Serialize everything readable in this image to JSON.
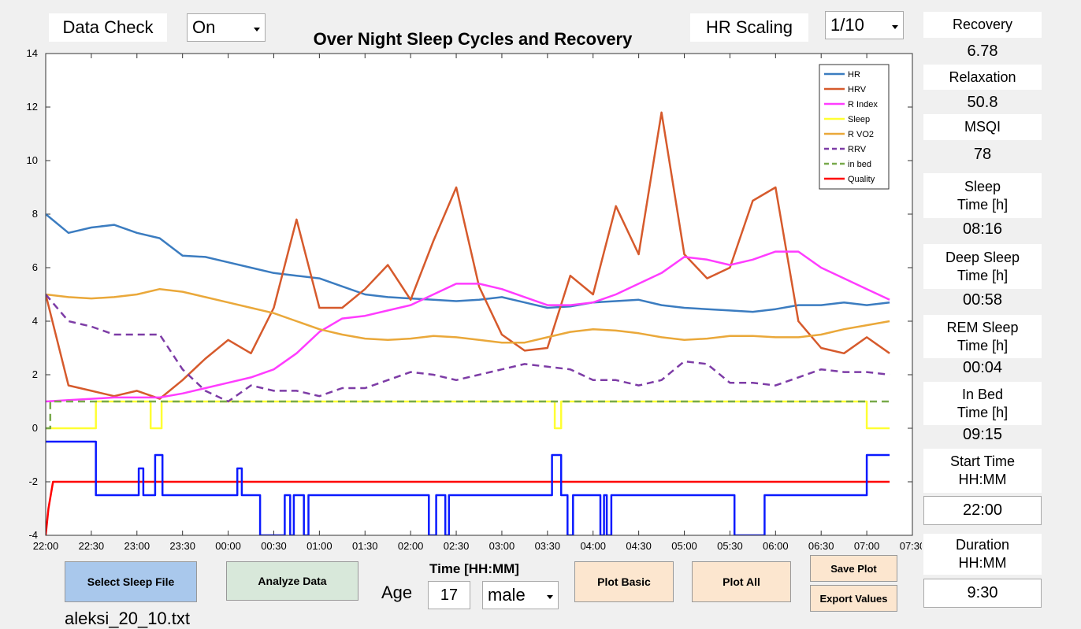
{
  "controls": {
    "data_check": {
      "label": "Data Check",
      "value": "On"
    },
    "hr_scaling": {
      "label": "HR Scaling",
      "value": "1/10"
    },
    "buttons": [
      "Select Sleep File",
      "Analyze Data",
      "Plot Basic",
      "Plot All",
      "Save Plot",
      "Export Values"
    ],
    "file_name": "aleksi_20_10.txt",
    "age": {
      "label": "Age",
      "value": 17
    },
    "sex": "male"
  },
  "metrics": [
    {
      "label": "Recovery",
      "value": 6.78
    },
    {
      "label": "Relaxation",
      "value": 50.8
    },
    {
      "label": "MSQI",
      "value": 78
    },
    {
      "label": "Sleep\nTime [h]",
      "value": "08:16"
    },
    {
      "label": "Deep Sleep\nTime [h]",
      "value": "00:58"
    },
    {
      "label": "REM Sleep\nTime [h]",
      "value": "00:04"
    },
    {
      "label": "In Bed\nTime [h]",
      "value": "09:15"
    },
    {
      "label": "Start Time\nHH:MM",
      "value": "22:00"
    },
    {
      "label": "Duration\nHH:MM",
      "value": "9:30"
    }
  ],
  "chart_data": {
    "type": "line",
    "title": "Over Night Sleep Cycles and Recovery",
    "x_label": "Time [HH:MM]",
    "legend": "upper right",
    "xlim": [
      22,
      31.5
    ],
    "xticks": [
      {
        "value": 22,
        "label": "22:00"
      },
      {
        "value": 22.5,
        "label": "22:30"
      },
      {
        "value": 23,
        "label": "23:00"
      },
      {
        "value": 23.5,
        "label": "23:30"
      },
      {
        "value": 24,
        "label": "00:00"
      },
      {
        "value": 24.5,
        "label": "00:30"
      },
      {
        "value": 25,
        "label": "01:00"
      },
      {
        "value": 25.5,
        "label": "01:30"
      },
      {
        "value": 26,
        "label": "02:00"
      },
      {
        "value": 26.5,
        "label": "02:30"
      },
      {
        "value": 27,
        "label": "03:00"
      },
      {
        "value": 27.5,
        "label": "03:30"
      },
      {
        "value": 28,
        "label": "04:00"
      },
      {
        "value": 28.5,
        "label": "04:30"
      },
      {
        "value": 29,
        "label": "05:00"
      },
      {
        "value": 29.5,
        "label": "05:30"
      },
      {
        "value": 30,
        "label": "06:00"
      },
      {
        "value": 30.5,
        "label": "06:30"
      },
      {
        "value": 31,
        "label": "07:00"
      },
      {
        "value": 31.5,
        "label": "07:30"
      }
    ],
    "ylim": [
      -4,
      14
    ],
    "yticks": [
      -4,
      -2,
      0,
      2,
      4,
      6,
      8,
      10,
      12,
      14
    ],
    "x": [
      22,
      22.25,
      22.5,
      22.75,
      23,
      23.25,
      23.5,
      23.75,
      24,
      24.25,
      24.5,
      24.75,
      25,
      25.25,
      25.5,
      25.75,
      26,
      26.25,
      26.5,
      26.75,
      27,
      27.25,
      27.5,
      27.75,
      28,
      28.25,
      28.5,
      28.75,
      29,
      29.25,
      29.5,
      29.75,
      30,
      30.25,
      30.5,
      30.75,
      31,
      31.25
    ],
    "series": [
      {
        "name": "HR",
        "color": "#3b7cc0",
        "values": [
          8.0,
          7.3,
          7.5,
          7.6,
          7.3,
          7.1,
          6.45,
          6.4,
          6.2,
          6.0,
          5.8,
          5.7,
          5.6,
          5.3,
          5.0,
          4.9,
          4.85,
          4.8,
          4.75,
          4.8,
          4.9,
          4.7,
          4.5,
          4.55,
          4.7,
          4.75,
          4.8,
          4.6,
          4.5,
          4.45,
          4.4,
          4.35,
          4.45,
          4.6,
          4.6,
          4.7,
          4.6,
          4.7
        ]
      },
      {
        "name": "HRV",
        "color": "#d65a2c",
        "values": [
          5.0,
          1.6,
          1.4,
          1.2,
          1.4,
          1.1,
          1.8,
          2.6,
          3.3,
          2.8,
          4.5,
          7.8,
          4.5,
          4.5,
          5.2,
          6.1,
          4.8,
          7.0,
          9.0,
          5.3,
          3.5,
          2.9,
          3.0,
          5.7,
          5.0,
          8.3,
          6.5,
          11.8,
          6.5,
          5.6,
          6.0,
          8.5,
          9.0,
          4.0,
          3.0,
          2.8,
          3.4,
          2.8
        ]
      },
      {
        "name": "R Index",
        "color": "#ff3cff",
        "values": [
          1.0,
          1.05,
          1.1,
          1.15,
          1.15,
          1.15,
          1.3,
          1.5,
          1.7,
          1.9,
          2.2,
          2.8,
          3.6,
          4.1,
          4.2,
          4.4,
          4.6,
          5.0,
          5.4,
          5.4,
          5.2,
          4.9,
          4.6,
          4.6,
          4.7,
          5.0,
          5.4,
          5.8,
          6.4,
          6.3,
          6.1,
          6.3,
          6.6,
          6.6,
          6.0,
          5.6,
          5.2,
          4.8
        ]
      },
      {
        "name": "Sleep",
        "color": "#ffff33",
        "x": [
          22,
          22.55,
          22.55,
          23.15,
          23.15,
          23.27,
          23.27,
          27.58,
          27.58,
          27.65,
          27.65,
          31.0,
          31.0,
          31.25
        ],
        "values": [
          0,
          0,
          1,
          1,
          0,
          0,
          1,
          1,
          0,
          0,
          1,
          1,
          0,
          0
        ]
      },
      {
        "name": "R VO2",
        "color": "#eaa83a",
        "values": [
          5.0,
          4.9,
          4.85,
          4.9,
          5.0,
          5.2,
          5.1,
          4.9,
          4.7,
          4.5,
          4.3,
          4.0,
          3.7,
          3.5,
          3.35,
          3.3,
          3.35,
          3.45,
          3.4,
          3.3,
          3.2,
          3.2,
          3.4,
          3.6,
          3.7,
          3.65,
          3.55,
          3.4,
          3.3,
          3.35,
          3.45,
          3.45,
          3.4,
          3.4,
          3.5,
          3.7,
          3.85,
          4.0
        ]
      },
      {
        "name": "RRV",
        "color": "#7d3ca6",
        "dashed": true,
        "values": [
          5.0,
          4.0,
          3.8,
          3.5,
          3.5,
          3.5,
          2.2,
          1.4,
          1.0,
          1.6,
          1.4,
          1.4,
          1.2,
          1.5,
          1.5,
          1.8,
          2.1,
          2.0,
          1.8,
          2.0,
          2.2,
          2.4,
          2.3,
          2.2,
          1.8,
          1.8,
          1.6,
          1.8,
          2.5,
          2.4,
          1.7,
          1.7,
          1.6,
          1.9,
          2.2,
          2.1,
          2.1,
          2.0
        ]
      },
      {
        "name": "in bed",
        "color": "#78a94a",
        "dashed": true,
        "x": [
          22,
          22.05,
          22.05,
          31.25
        ],
        "values": [
          0,
          0,
          1,
          1
        ]
      },
      {
        "name": "Quality",
        "color": "#ff0000",
        "x": [
          22,
          22.03,
          22.08,
          31.25
        ],
        "values": [
          -4,
          -3,
          -2,
          -2
        ]
      },
      {
        "color": "#0a1aff",
        "x": [
          22,
          22.55,
          22.55,
          23.02,
          23.02,
          23.07,
          23.07,
          23.2,
          23.2,
          23.28,
          23.28,
          24.1,
          24.1,
          24.15,
          24.15,
          24.35,
          24.35,
          24.62,
          24.62,
          24.68,
          24.68,
          24.72,
          24.72,
          24.83,
          24.83,
          24.88,
          24.88,
          26.2,
          26.2,
          26.28,
          26.28,
          26.38,
          26.38,
          26.42,
          26.42,
          27.55,
          27.55,
          27.65,
          27.65,
          27.72,
          27.72,
          27.78,
          27.78,
          28.08,
          28.08,
          28.12,
          28.12,
          28.15,
          28.15,
          28.2,
          28.2,
          29.55,
          29.55,
          29.88,
          29.88,
          31.0,
          31.0,
          31.25
        ],
        "values": [
          -0.5,
          -0.5,
          -2.5,
          -2.5,
          -1.5,
          -1.5,
          -2.5,
          -2.5,
          -1,
          -1,
          -2.5,
          -2.5,
          -1.5,
          -1.5,
          -2.5,
          -2.5,
          -4,
          -4,
          -2.5,
          -2.5,
          -4,
          -4,
          -2.5,
          -2.5,
          -4,
          -4,
          -2.5,
          -2.5,
          -4,
          -4,
          -2.5,
          -2.5,
          -4,
          -4,
          -2.5,
          -2.5,
          -1,
          -1,
          -2.5,
          -2.5,
          -4,
          -4,
          -2.5,
          -2.5,
          -4,
          -4,
          -2.5,
          -2.5,
          -4,
          -4,
          -2.5,
          -2.5,
          -4,
          -4,
          -2.5,
          -2.5,
          -1,
          -1
        ]
      }
    ]
  }
}
